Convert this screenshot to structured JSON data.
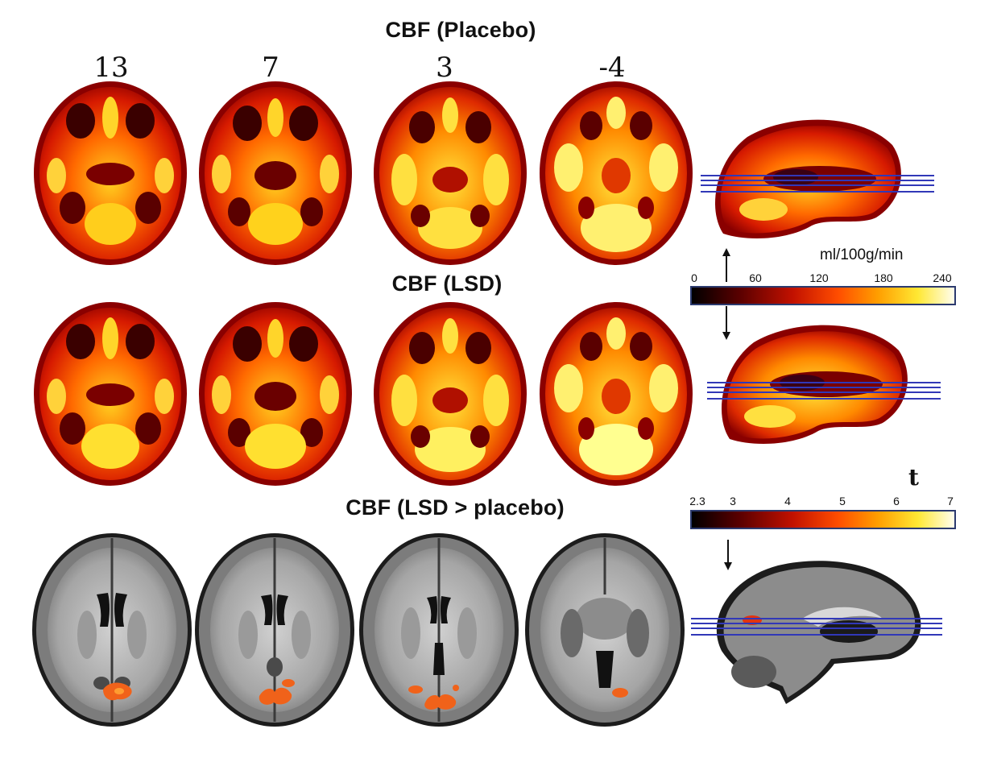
{
  "titles": {
    "placebo": "CBF (Placebo)",
    "lsd": "CBF (LSD)",
    "diff": "CBF (LSD > placebo)"
  },
  "slices": [
    "13",
    "7",
    "3",
    "-4"
  ],
  "cbf_scale": {
    "unit": "ml/100g/min",
    "ticks": [
      "0",
      "60",
      "120",
      "180",
      "240"
    ],
    "colormap": [
      "#000000",
      "#5a0000",
      "#c21100",
      "#ff4d00",
      "#ff9e00",
      "#ffe833",
      "#ffffff"
    ]
  },
  "t_scale": {
    "label": "t",
    "ticks": [
      "2.3",
      "3",
      "4",
      "5",
      "6",
      "7"
    ],
    "colormap": [
      "#000000",
      "#5a0000",
      "#c21100",
      "#ff4d00",
      "#ff9e00",
      "#ffe833",
      "#ffffff"
    ]
  },
  "colors": {
    "slice_lines": "#3138b8",
    "activation": "#f0621a"
  }
}
